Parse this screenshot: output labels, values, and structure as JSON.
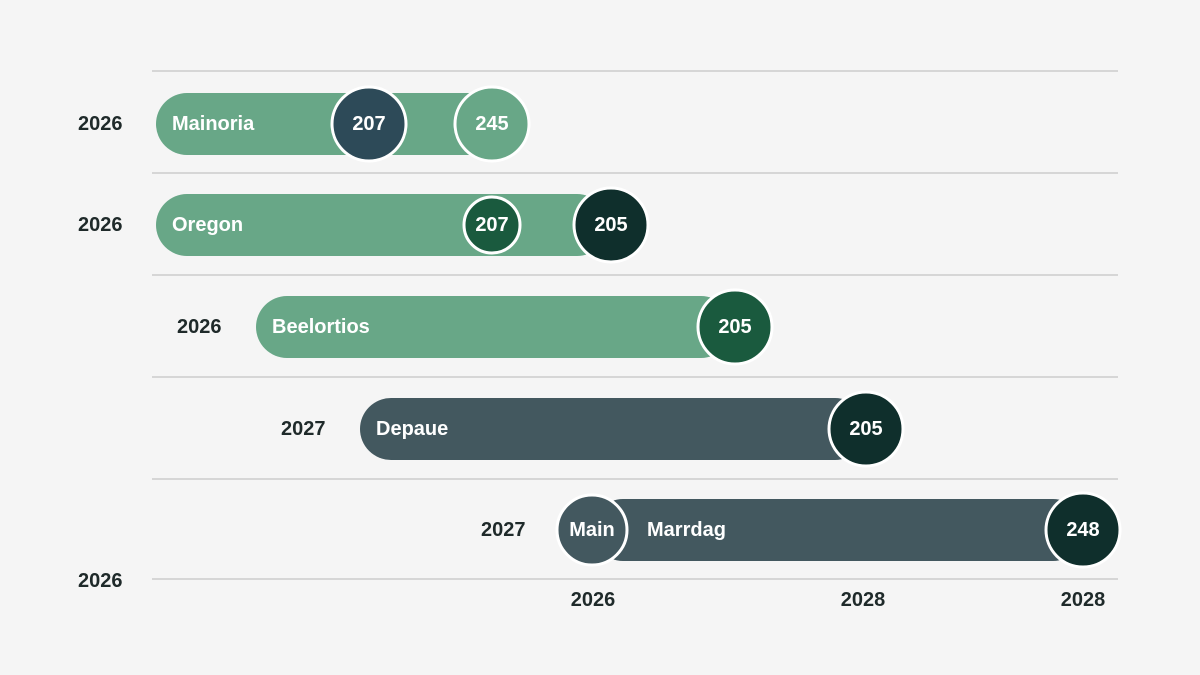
{
  "colors": {
    "background": "#f5f5f5",
    "gridline": "#c4c4c4",
    "green_bar": "#68a787",
    "slate_bar": "#43585f",
    "dark_green_marker": "#1a5a3e",
    "dark_teal_marker": "#0f2f2c",
    "navy_marker": "#2d4a58",
    "label_text": "#1f2a2a"
  },
  "chart_data": {
    "type": "bar",
    "row_labels": [
      "2026",
      "2026",
      "2026",
      "2027",
      "2027",
      "2026"
    ],
    "x_tick_labels": [
      "2026",
      "2028",
      "2028"
    ],
    "rows": [
      {
        "label": "Mainoria",
        "bar_color": "green",
        "markers": [
          {
            "value": "207",
            "style": "navy"
          },
          {
            "value": "245",
            "style": "light"
          }
        ]
      },
      {
        "label": "Oregon",
        "bar_color": "green",
        "markers": [
          {
            "value": "207",
            "style": "dark-green"
          },
          {
            "value": "205",
            "style": "dark-teal"
          }
        ]
      },
      {
        "label": "Beelortios",
        "bar_color": "green",
        "markers": [
          {
            "value": "205",
            "style": "dark-green"
          }
        ]
      },
      {
        "label": "Depaue",
        "bar_color": "slate",
        "markers": [
          {
            "value": "205",
            "style": "dark-teal"
          }
        ]
      },
      {
        "label": "Marrdag",
        "bar_color": "slate",
        "start_marker": "Main",
        "markers": [
          {
            "value": "248",
            "style": "dark-teal"
          }
        ]
      }
    ]
  }
}
